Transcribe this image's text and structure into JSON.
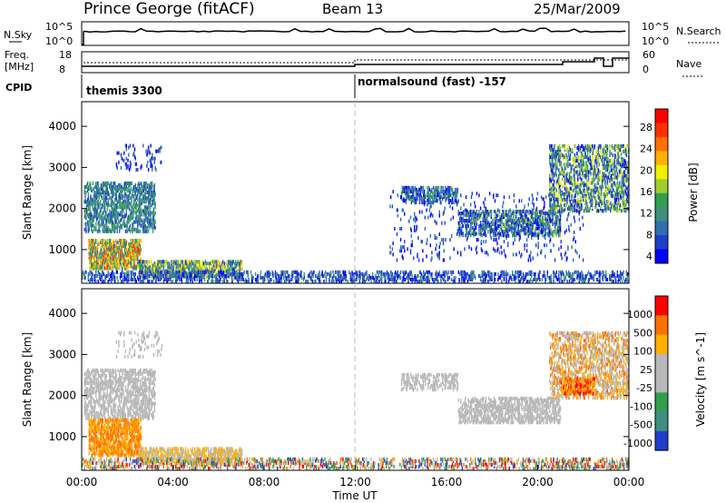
{
  "header": {
    "station": "Prince George (fitACF)",
    "beam": "Beam 13",
    "date": "25/Mar/2009"
  },
  "top_panels": {
    "nsky_label": "N.Sky",
    "nsky_ticks": [
      "10^5",
      "10^0"
    ],
    "nsearch_label": "N.Search",
    "nsearch_ticks": [
      "10^5",
      "10^0"
    ],
    "freq_label_line1": "Freq.",
    "freq_label_line2": "[MHz]",
    "freq_ticks": [
      "18",
      "8"
    ],
    "nave_label": "Nave",
    "nave_ticks": [
      "60",
      "0"
    ],
    "cpid_label": "CPID",
    "cpid_segments": [
      {
        "label": "themis 3300",
        "start_hour": 0
      },
      {
        "label": "normalsound (fast) -157",
        "start_hour": 12
      }
    ]
  },
  "chart_data": [
    {
      "type": "heatmap",
      "name": "power",
      "ylabel": "Slant Range [km]",
      "yticks": [
        1000,
        2000,
        3000,
        4000
      ],
      "ylim": [
        180,
        4600
      ],
      "xlim": [
        0,
        24
      ],
      "colorbar_label": "Power [dB]",
      "colorbar_ticks": [
        "28",
        "24",
        "20",
        "16",
        "12",
        "8",
        "4"
      ],
      "colors": [
        "#0000ff",
        "#1f3fc8",
        "#2f6faf",
        "#3f8f7f",
        "#2f9f4f",
        "#9fcf2f",
        "#f0f000",
        "#ffb000",
        "#ff7000",
        "#ff3000",
        "#ff0000"
      ],
      "clusters": [
        {
          "t0": 0.1,
          "t1": 3.2,
          "r0": 1400,
          "r1": 2600,
          "p": 0.35,
          "lv": [
            1,
            4
          ]
        },
        {
          "t0": 0.3,
          "t1": 2.6,
          "r0": 500,
          "r1": 1200,
          "p": 0.5,
          "lv": [
            2,
            9
          ]
        },
        {
          "t0": 1.5,
          "t1": 3.5,
          "r0": 2900,
          "r1": 3500,
          "p": 0.08,
          "lv": [
            0,
            2
          ]
        },
        {
          "t0": 2.5,
          "t1": 7.0,
          "r0": 300,
          "r1": 700,
          "p": 0.45,
          "lv": [
            1,
            7
          ]
        },
        {
          "t0": 0.0,
          "t1": 24.0,
          "r0": 180,
          "r1": 450,
          "p": 0.28,
          "lv": [
            0,
            3
          ]
        },
        {
          "t0": 14.0,
          "t1": 16.5,
          "r0": 2100,
          "r1": 2500,
          "p": 0.3,
          "lv": [
            0,
            4
          ]
        },
        {
          "t0": 16.5,
          "t1": 21.0,
          "r0": 1300,
          "r1": 1900,
          "p": 0.35,
          "lv": [
            0,
            5
          ]
        },
        {
          "t0": 20.5,
          "t1": 24.0,
          "r0": 1900,
          "r1": 3500,
          "p": 0.3,
          "lv": [
            0,
            6
          ]
        },
        {
          "t0": 13.5,
          "t1": 22.0,
          "r0": 700,
          "r1": 2400,
          "p": 0.04,
          "lv": [
            0,
            2
          ]
        }
      ]
    },
    {
      "type": "heatmap",
      "name": "velocity",
      "ylabel": "Slant Range [km]",
      "yticks": [
        1000,
        2000,
        3000,
        4000
      ],
      "ylim": [
        180,
        4600
      ],
      "xlim": [
        0,
        24
      ],
      "colorbar_label": "Velocity [m s^-1]",
      "colorbar_ticks": [
        "1000",
        "500",
        "100",
        "25",
        "-25",
        "-100",
        "-500",
        "-1000"
      ],
      "colors": [
        "#1f3fc8",
        "#3f8f7f",
        "#2f9f4f",
        "#b8b8b8",
        "#b8b8b8",
        "#ffb000",
        "#ff7000",
        "#ff0000"
      ],
      "clusters": [
        {
          "t0": 0.1,
          "t1": 3.2,
          "r0": 1400,
          "r1": 2600,
          "p": 0.35,
          "lv": [
            3,
            4
          ]
        },
        {
          "t0": 0.3,
          "t1": 2.6,
          "r0": 500,
          "r1": 1400,
          "p": 0.45,
          "lv": [
            5,
            6
          ]
        },
        {
          "t0": 1.5,
          "t1": 3.5,
          "r0": 2900,
          "r1": 3500,
          "p": 0.08,
          "lv": [
            3,
            4
          ]
        },
        {
          "t0": 2.5,
          "t1": 7.0,
          "r0": 300,
          "r1": 700,
          "p": 0.45,
          "lv": [
            4,
            5
          ]
        },
        {
          "t0": 0.0,
          "t1": 24.0,
          "r0": 180,
          "r1": 450,
          "p": 0.25,
          "lv": [
            0,
            7
          ]
        },
        {
          "t0": 14.0,
          "t1": 16.5,
          "r0": 2100,
          "r1": 2500,
          "p": 0.3,
          "lv": [
            3,
            4
          ]
        },
        {
          "t0": 16.5,
          "t1": 21.0,
          "r0": 1300,
          "r1": 1900,
          "p": 0.35,
          "lv": [
            3,
            4
          ]
        },
        {
          "t0": 20.5,
          "t1": 24.0,
          "r0": 1900,
          "r1": 3500,
          "p": 0.3,
          "lv": [
            3,
            6
          ]
        },
        {
          "t0": 21.0,
          "t1": 22.5,
          "r0": 2000,
          "r1": 2400,
          "p": 0.5,
          "lv": [
            5,
            7
          ]
        }
      ]
    }
  ],
  "x_axis": {
    "ticks": [
      "00:00",
      "04:00",
      "08:00",
      "12:00",
      "16:00",
      "20:00",
      "00:00"
    ],
    "label": "Time UT"
  }
}
